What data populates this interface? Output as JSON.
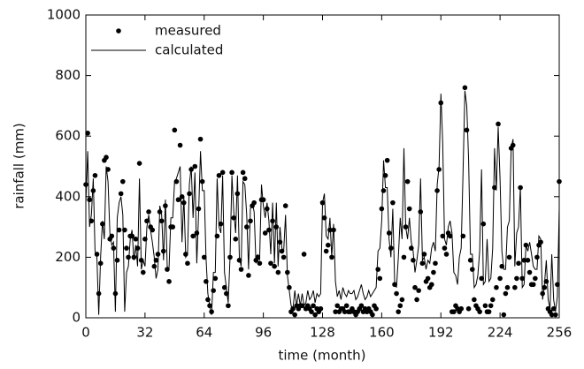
{
  "chart_data": {
    "type": "line",
    "x_label": "time (month)",
    "y_label": "rainfall (mm)",
    "xlim": [
      0,
      256
    ],
    "ylim": [
      0,
      1000
    ],
    "xticks": [
      0,
      32,
      64,
      96,
      128,
      160,
      192,
      224,
      256
    ],
    "yticks": [
      0,
      200,
      400,
      600,
      800,
      1000
    ],
    "legend": "upper left",
    "x": [
      0,
      1,
      2,
      3,
      4,
      5,
      6,
      7,
      8,
      9,
      10,
      11,
      12,
      13,
      14,
      15,
      16,
      17,
      18,
      19,
      20,
      21,
      22,
      23,
      24,
      25,
      26,
      27,
      28,
      29,
      30,
      31,
      32,
      33,
      34,
      35,
      36,
      37,
      38,
      39,
      40,
      41,
      42,
      43,
      44,
      45,
      46,
      47,
      48,
      49,
      50,
      51,
      52,
      53,
      54,
      55,
      56,
      57,
      58,
      59,
      60,
      61,
      62,
      63,
      64,
      65,
      66,
      67,
      68,
      69,
      70,
      71,
      72,
      73,
      74,
      75,
      76,
      77,
      78,
      79,
      80,
      81,
      82,
      83,
      84,
      85,
      86,
      87,
      88,
      89,
      90,
      91,
      92,
      93,
      94,
      95,
      96,
      97,
      98,
      99,
      100,
      101,
      102,
      103,
      104,
      105,
      106,
      107,
      108,
      109,
      110,
      111,
      112,
      113,
      114,
      115,
      116,
      117,
      118,
      119,
      120,
      121,
      122,
      123,
      124,
      125,
      126,
      127,
      128,
      129,
      130,
      131,
      132,
      133,
      134,
      135,
      136,
      137,
      138,
      139,
      140,
      141,
      142,
      143,
      144,
      145,
      146,
      147,
      148,
      149,
      150,
      151,
      152,
      153,
      154,
      155,
      156,
      157,
      158,
      159,
      160,
      161,
      162,
      163,
      164,
      165,
      166,
      167,
      168,
      169,
      170,
      171,
      172,
      173,
      174,
      175,
      176,
      177,
      178,
      179,
      180,
      181,
      182,
      183,
      184,
      185,
      186,
      187,
      188,
      189,
      190,
      191,
      192,
      193,
      194,
      195,
      196,
      197,
      198,
      199,
      200,
      201,
      202,
      203,
      204,
      205,
      206,
      207,
      208,
      209,
      210,
      211,
      212,
      213,
      214,
      215,
      216,
      217,
      218,
      219,
      220,
      221,
      222,
      223,
      224,
      225,
      226,
      227,
      228,
      229,
      230,
      231,
      232,
      233,
      234,
      235,
      236,
      237,
      238,
      239,
      240,
      241,
      242,
      243,
      244,
      245,
      246,
      247,
      248,
      249,
      250,
      251,
      252,
      253,
      254,
      255,
      256
    ],
    "series": [
      {
        "name": "measured",
        "style": "markers",
        "color": "#000000",
        "values": [
          440,
          610,
          390,
          320,
          420,
          470,
          210,
          80,
          180,
          310,
          520,
          530,
          490,
          260,
          270,
          230,
          80,
          190,
          290,
          410,
          450,
          290,
          230,
          200,
          270,
          270,
          200,
          260,
          230,
          510,
          190,
          150,
          260,
          320,
          350,
          300,
          290,
          170,
          190,
          210,
          350,
          320,
          220,
          370,
          160,
          120,
          300,
          300,
          620,
          450,
          390,
          570,
          400,
          380,
          210,
          180,
          410,
          490,
          270,
          500,
          280,
          360,
          590,
          450,
          200,
          120,
          60,
          40,
          20,
          90,
          130,
          270,
          470,
          310,
          480,
          100,
          80,
          40,
          200,
          480,
          330,
          260,
          410,
          190,
          160,
          480,
          460,
          300,
          140,
          320,
          370,
          380,
          190,
          200,
          180,
          390,
          390,
          280,
          360,
          290,
          180,
          320,
          170,
          300,
          150,
          250,
          220,
          200,
          370,
          150,
          100,
          20,
          30,
          10,
          40,
          30,
          40,
          40,
          210,
          30,
          40,
          30,
          20,
          40,
          10,
          30,
          20,
          30,
          380,
          330,
          220,
          240,
          290,
          200,
          290,
          20,
          40,
          20,
          30,
          30,
          20,
          40,
          20,
          20,
          30,
          20,
          10,
          20,
          30,
          40,
          20,
          30,
          20,
          30,
          20,
          10,
          40,
          30,
          160,
          130,
          360,
          420,
          470,
          520,
          280,
          230,
          380,
          110,
          80,
          20,
          40,
          60,
          200,
          300,
          450,
          360,
          230,
          190,
          100,
          60,
          90,
          350,
          180,
          210,
          120,
          130,
          100,
          110,
          150,
          180,
          420,
          490,
          710,
          270,
          230,
          210,
          280,
          270,
          20,
          20,
          40,
          30,
          20,
          30,
          270,
          760,
          620,
          30,
          190,
          160,
          60,
          40,
          30,
          20,
          130,
          310,
          40,
          20,
          20,
          40,
          60,
          430,
          100,
          640,
          130,
          170,
          10,
          80,
          100,
          200,
          560,
          570,
          100,
          130,
          180,
          430,
          130,
          190,
          240,
          190,
          150,
          110,
          110,
          130,
          200,
          240,
          250,
          80,
          100,
          120,
          30,
          20,
          10,
          30,
          10,
          110,
          450
        ]
      },
      {
        "name": "calculated",
        "style": "line",
        "color": "#000000",
        "values": [
          380,
          550,
          300,
          340,
          460,
          220,
          200,
          10,
          200,
          320,
          260,
          500,
          450,
          280,
          240,
          250,
          20,
          330,
          380,
          400,
          340,
          20,
          150,
          170,
          260,
          290,
          190,
          240,
          170,
          460,
          160,
          190,
          170,
          300,
          340,
          290,
          250,
          200,
          130,
          160,
          370,
          340,
          190,
          390,
          170,
          160,
          330,
          330,
          450,
          460,
          480,
          500,
          250,
          400,
          200,
          210,
          440,
          500,
          330,
          480,
          180,
          350,
          550,
          420,
          420,
          200,
          80,
          40,
          10,
          150,
          150,
          460,
          300,
          280,
          470,
          150,
          100,
          50,
          200,
          470,
          350,
          280,
          470,
          200,
          170,
          450,
          440,
          340,
          160,
          360,
          380,
          350,
          180,
          210,
          190,
          440,
          370,
          330,
          380,
          320,
          210,
          380,
          180,
          380,
          170,
          300,
          230,
          220,
          340,
          140,
          90,
          40,
          30,
          90,
          40,
          80,
          40,
          80,
          40,
          50,
          90,
          60,
          70,
          90,
          50,
          80,
          70,
          80,
          380,
          410,
          270,
          260,
          330,
          200,
          310,
          120,
          70,
          90,
          60,
          100,
          80,
          70,
          90,
          80,
          80,
          90,
          60,
          70,
          90,
          110,
          80,
          60,
          70,
          90,
          70,
          80,
          90,
          100,
          220,
          230,
          320,
          520,
          430,
          430,
          260,
          200,
          360,
          120,
          100,
          200,
          330,
          260,
          560,
          300,
          260,
          330,
          250,
          220,
          150,
          190,
          240,
          460,
          190,
          200,
          160,
          190,
          180,
          230,
          250,
          220,
          440,
          500,
          740,
          580,
          260,
          240,
          300,
          320,
          280,
          150,
          140,
          110,
          200,
          230,
          480,
          750,
          700,
          520,
          210,
          210,
          100,
          110,
          140,
          220,
          490,
          110,
          120,
          260,
          120,
          130,
          230,
          560,
          420,
          630,
          460,
          220,
          160,
          160,
          300,
          320,
          560,
          590,
          170,
          280,
          300,
          430,
          100,
          110,
          240,
          220,
          250,
          210,
          170,
          160,
          160,
          270,
          260,
          60,
          110,
          190,
          60,
          30,
          210,
          60,
          20,
          70,
          360
        ]
      }
    ]
  }
}
